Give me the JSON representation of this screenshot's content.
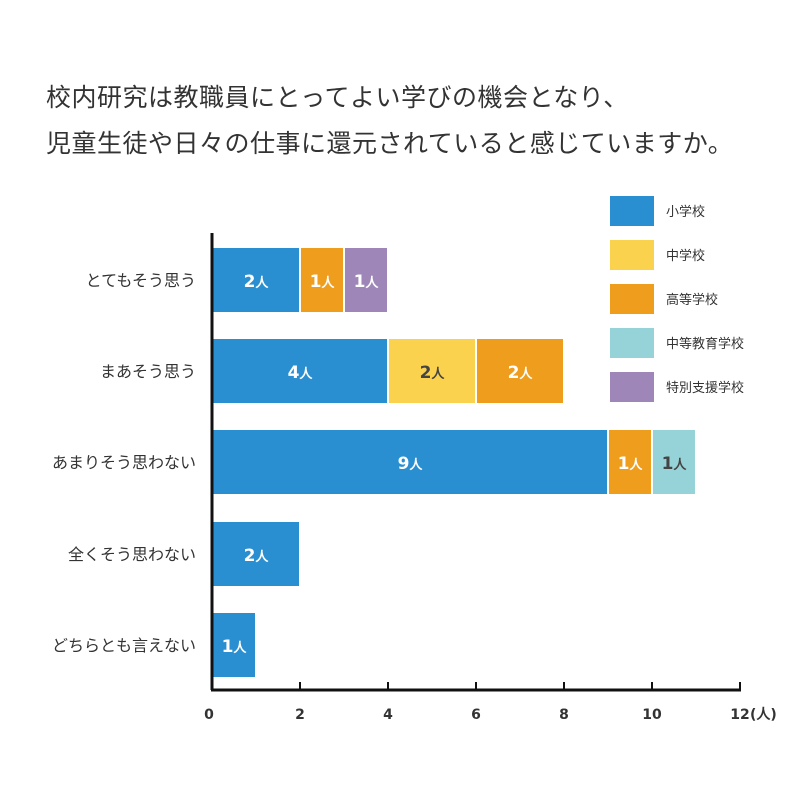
{
  "chart_data": {
    "type": "bar",
    "orientation": "horizontal",
    "stacked": true,
    "title_lines": [
      "校内研究は教職員にとってよい学びの機会となり、",
      "児童生徒や日々の仕事に還元されていると感じていますか。"
    ],
    "categories": [
      "とてもそう思う",
      "まあそう思う",
      "あまりそう思わない",
      "全くそう思わない",
      "どちらとも言えない"
    ],
    "series": [
      {
        "name": "小学校",
        "color": "#2a8fd0",
        "label_color": "#ffffff",
        "values": [
          2,
          4,
          9,
          2,
          1
        ]
      },
      {
        "name": "中学校",
        "color": "#fbd24e",
        "label_color": "#444444",
        "values": [
          0,
          2,
          0,
          0,
          0
        ]
      },
      {
        "name": "高等学校",
        "color": "#ee9d1d",
        "label_color": "#ffffff",
        "values": [
          1,
          2,
          1,
          0,
          0
        ]
      },
      {
        "name": "中等教育学校",
        "color": "#96d3d8",
        "label_color": "#444444",
        "values": [
          0,
          0,
          1,
          0,
          0
        ]
      },
      {
        "name": "特別支援学校",
        "color": "#9e87b8",
        "label_color": "#ffffff",
        "values": [
          1,
          0,
          0,
          0,
          0
        ]
      }
    ],
    "value_suffix": "人",
    "xlim": [
      0,
      12
    ],
    "xticks": [
      "0",
      "2",
      "4",
      "6",
      "8",
      "10",
      "12"
    ],
    "x_unit": "(人)",
    "legend_position": "top-right",
    "grid": false
  }
}
